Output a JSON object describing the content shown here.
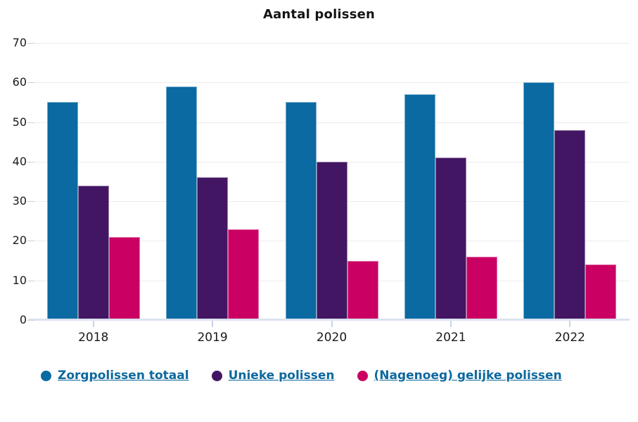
{
  "chart_data": {
    "type": "bar",
    "title": "Aantal polissen",
    "categories": [
      "2018",
      "2019",
      "2020",
      "2021",
      "2022"
    ],
    "series": [
      {
        "name": "Zorgpolissen totaal",
        "color": "#0a6aa1",
        "values": [
          55,
          59,
          55,
          57,
          60
        ]
      },
      {
        "name": "Unieke polissen",
        "color": "#431663",
        "values": [
          34,
          36,
          40,
          41,
          48
        ]
      },
      {
        "name": "(Nagenoeg) gelijke polissen",
        "color": "#ca0063",
        "values": [
          21,
          23,
          15,
          16,
          14
        ]
      }
    ],
    "ylim": [
      0,
      70
    ],
    "yticks": [
      0,
      10,
      20,
      30,
      40,
      50,
      60,
      70
    ],
    "xlabel": "",
    "ylabel": "",
    "grid": "horizontal",
    "legend_position": "bottom",
    "colors": {
      "title_text": "#141414",
      "axis_text": "#1a1a1a",
      "gridline": "#ececec",
      "axis_line": "#dbe2f0",
      "legend_text": "#0d689e"
    }
  }
}
